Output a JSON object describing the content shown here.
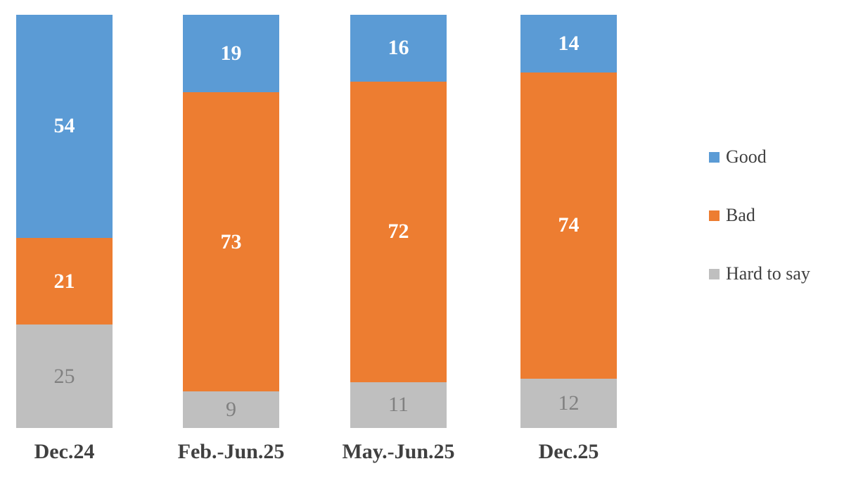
{
  "chart_data": {
    "type": "bar",
    "subtype": "stacked-100-percent-column",
    "title": "",
    "xlabel": "",
    "ylabel": "",
    "grid": false,
    "legend_position": "right",
    "background_color": "#FFFFFF",
    "axis_label_color": "#404040",
    "categories": [
      "Dec.24",
      "Feb.-Jun.25",
      "May.-Jun.25",
      "Dec.25"
    ],
    "series": [
      {
        "name": "Good",
        "color": "#5B9BD5",
        "label_color": "#FFFFFF",
        "label_bold": true,
        "values": [
          54,
          19,
          16,
          14
        ]
      },
      {
        "name": "Bad",
        "color": "#ED7D31",
        "label_color": "#FFFFFF",
        "label_bold": true,
        "values": [
          21,
          73,
          72,
          74
        ]
      },
      {
        "name": "Hard to say",
        "color": "#BFBFBF",
        "label_color": "#808080",
        "label_bold": false,
        "values": [
          25,
          9,
          11,
          12
        ]
      }
    ]
  }
}
